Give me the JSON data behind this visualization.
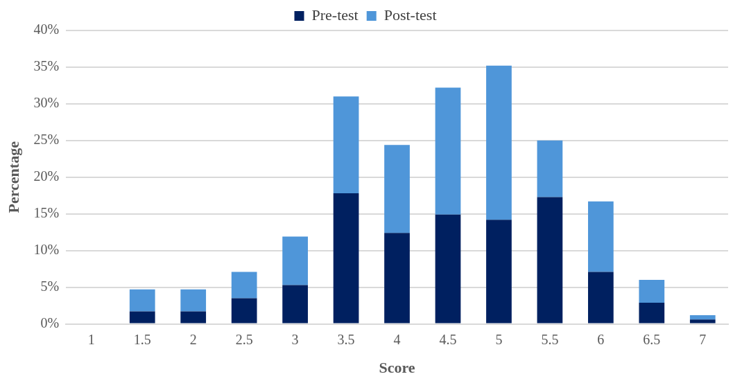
{
  "chart_data": {
    "type": "bar",
    "stacked": true,
    "xlabel": "Score",
    "ylabel": "Percentage",
    "categories": [
      "1",
      "1.5",
      "2",
      "2.5",
      "3",
      "3.5",
      "4",
      "4.5",
      "5",
      "5.5",
      "6",
      "6.5",
      "7"
    ],
    "series": [
      {
        "name": "Pre-test",
        "color": "#002060",
        "values": [
          0,
          1.7,
          1.7,
          3.5,
          5.3,
          17.8,
          12.4,
          14.9,
          14.2,
          17.3,
          7.1,
          2.9,
          0.6
        ]
      },
      {
        "name": "Post-test",
        "color": "#4f96d9",
        "values": [
          0,
          3.0,
          3.0,
          3.6,
          6.6,
          13.2,
          12.0,
          17.3,
          21.0,
          7.7,
          9.6,
          3.1,
          0.6
        ]
      }
    ],
    "ylim": [
      0,
      40
    ],
    "yticks": [
      {
        "value": 0,
        "label": "0%"
      },
      {
        "value": 5,
        "label": "5%"
      },
      {
        "value": 10,
        "label": "10%"
      },
      {
        "value": 15,
        "label": "15%"
      },
      {
        "value": 20,
        "label": "20%"
      },
      {
        "value": 25,
        "label": "25%"
      },
      {
        "value": 30,
        "label": "30%"
      },
      {
        "value": 35,
        "label": "35%"
      },
      {
        "value": 40,
        "label": "40%"
      }
    ],
    "grid": "y",
    "legend": "top"
  }
}
